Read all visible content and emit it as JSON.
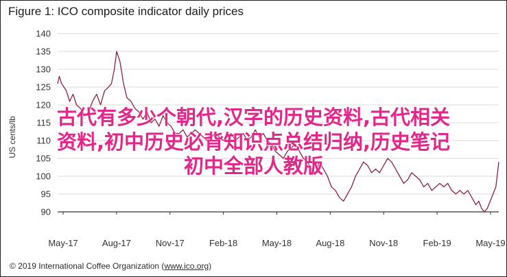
{
  "figure": {
    "title": "Figure 1: ICO composite indicator daily prices",
    "credit_prefix": "© 2019 International Coffee Organization (",
    "credit_link": "www.ico.org",
    "credit_suffix": ")"
  },
  "overlay_text": {
    "line1": "古代有多少个朝代,汉字的历史资料,古代相关",
    "line2": "资料,初中历史必背知识点总结归纳,历史笔记",
    "line3": "初中全部人教版"
  },
  "colors": {
    "series": "#8e1f3f",
    "grid": "#d9d9d9",
    "axis": "#333333",
    "overlay": "#e0278a"
  },
  "chart_data": {
    "type": "line",
    "title": "Figure 1: ICO composite indicator daily prices",
    "ylabel": "US cents/lb",
    "ylim": [
      90,
      140
    ],
    "yticks": [
      90,
      95,
      100,
      105,
      110,
      115,
      120,
      125,
      130,
      135,
      140
    ],
    "xticks": [
      "May-17",
      "Aug-17",
      "Nov-17",
      "Feb-18",
      "May-18",
      "Aug-18",
      "Nov-18",
      "Feb-19",
      "May-19"
    ],
    "grid": true,
    "series": [
      {
        "x": [
          "2017-05-01",
          "2017-05-04",
          "2017-05-08",
          "2017-05-12",
          "2017-05-16",
          "2017-05-22",
          "2017-05-28",
          "2017-06-03",
          "2017-06-10",
          "2017-06-17",
          "2017-06-24",
          "2017-07-01",
          "2017-07-08",
          "2017-07-15",
          "2017-07-22",
          "2017-07-29",
          "2017-08-03",
          "2017-08-08",
          "2017-08-12",
          "2017-08-18",
          "2017-08-24",
          "2017-08-30",
          "2017-09-06",
          "2017-09-13",
          "2017-09-20",
          "2017-09-27",
          "2017-10-04",
          "2017-10-11",
          "2017-10-18",
          "2017-10-25",
          "2017-11-01",
          "2017-11-08",
          "2017-11-15",
          "2017-11-22",
          "2017-11-29",
          "2017-12-06",
          "2017-12-13",
          "2017-12-20",
          "2017-12-27",
          "2018-01-03",
          "2018-01-10",
          "2018-01-17",
          "2018-01-24",
          "2018-01-31",
          "2018-02-07",
          "2018-02-14",
          "2018-02-21",
          "2018-02-28",
          "2018-03-07",
          "2018-03-14",
          "2018-03-21",
          "2018-03-28",
          "2018-04-04",
          "2018-04-11",
          "2018-04-18",
          "2018-04-25",
          "2018-05-02",
          "2018-05-09",
          "2018-05-16",
          "2018-05-23",
          "2018-05-30",
          "2018-06-06",
          "2018-06-13",
          "2018-06-20",
          "2018-06-27",
          "2018-07-04",
          "2018-07-11",
          "2018-07-18",
          "2018-07-25",
          "2018-08-01",
          "2018-08-08",
          "2018-08-15",
          "2018-08-22",
          "2018-08-29",
          "2018-09-05",
          "2018-09-12",
          "2018-09-19",
          "2018-09-26",
          "2018-10-03",
          "2018-10-10",
          "2018-10-17",
          "2018-10-24",
          "2018-10-31",
          "2018-11-07",
          "2018-11-14",
          "2018-11-21",
          "2018-11-28",
          "2018-12-05",
          "2018-12-12",
          "2018-12-19",
          "2018-12-26",
          "2019-01-02",
          "2019-01-09",
          "2019-01-16",
          "2019-01-23",
          "2019-01-30",
          "2019-02-06",
          "2019-02-13",
          "2019-02-20",
          "2019-02-27",
          "2019-03-06",
          "2019-03-13",
          "2019-03-20",
          "2019-03-27",
          "2019-04-03",
          "2019-04-10",
          "2019-04-17",
          "2019-04-24",
          "2019-05-01",
          "2019-05-06",
          "2019-05-11",
          "2019-05-16",
          "2019-05-21",
          "2019-05-26",
          "2019-05-31",
          "2019-06-05",
          "2019-06-10"
        ],
        "values": [
          126,
          128,
          126,
          125,
          124,
          121,
          123,
          120,
          119,
          117,
          118,
          121,
          123,
          120,
          124,
          125,
          126,
          130,
          135,
          132,
          126,
          122,
          121,
          119,
          118,
          116,
          118,
          115,
          116,
          114,
          117,
          115,
          114,
          112,
          112,
          113,
          111,
          112,
          113,
          112,
          111,
          110,
          111,
          112,
          111,
          110,
          111,
          112,
          110,
          111,
          112,
          110,
          111,
          113,
          111,
          112,
          110,
          109,
          107,
          106,
          105,
          107,
          108,
          109,
          107,
          105,
          104,
          102,
          101,
          104,
          102,
          100,
          97,
          96,
          94,
          93,
          95,
          97,
          100,
          102,
          104,
          103,
          101,
          102,
          101,
          103,
          105,
          104,
          102,
          100,
          98,
          99,
          101,
          100,
          99,
          97,
          98,
          96,
          97,
          98,
          97,
          98,
          96,
          95,
          96,
          95,
          96,
          94,
          92,
          93,
          91,
          90,
          91,
          93,
          95,
          97,
          104
        ]
      }
    ]
  }
}
